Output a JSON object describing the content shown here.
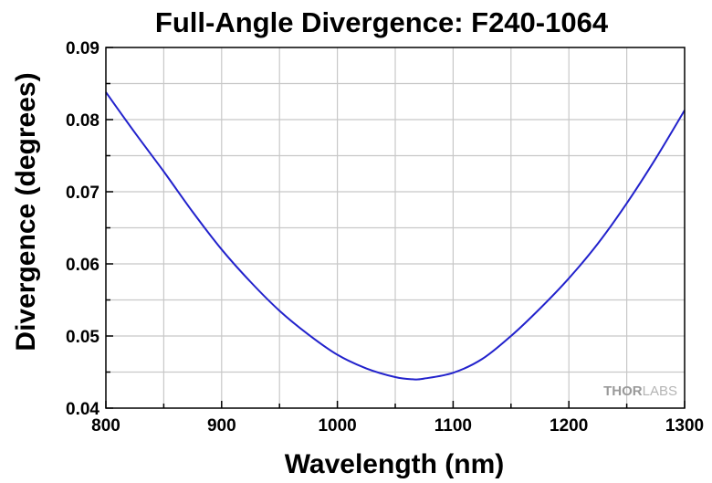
{
  "chart_data": {
    "type": "line",
    "title": "Full-Angle Divergence: F240-1064",
    "xlabel": "Wavelength (nm)",
    "ylabel": "Divergence (degrees)",
    "xlim": [
      800,
      1300
    ],
    "ylim": [
      0.04,
      0.09
    ],
    "x_ticks": [
      800,
      900,
      1000,
      1100,
      1200,
      1300
    ],
    "x_tick_labels": [
      "800",
      "900",
      "1000",
      "1100",
      "1200",
      "1300"
    ],
    "y_ticks": [
      0.04,
      0.05,
      0.06,
      0.07,
      0.08,
      0.09
    ],
    "y_tick_labels": [
      "0.04",
      "0.05",
      "0.06",
      "0.07",
      "0.08",
      "0.09"
    ],
    "grid": true,
    "series": [
      {
        "color": "#2222cc",
        "x": [
          800,
          825,
          850,
          875,
          900,
          925,
          950,
          975,
          1000,
          1025,
          1050,
          1065,
          1075,
          1100,
          1125,
          1150,
          1175,
          1200,
          1225,
          1250,
          1275,
          1300
        ],
        "y": [
          0.0838,
          0.0782,
          0.0728,
          0.0672,
          0.062,
          0.0575,
          0.0535,
          0.0502,
          0.0474,
          0.0455,
          0.0443,
          0.044,
          0.0441,
          0.0449,
          0.0468,
          0.05,
          0.0538,
          0.058,
          0.0628,
          0.0684,
          0.0746,
          0.0813
        ]
      }
    ]
  },
  "watermark": {
    "thor": "THOR",
    "labs": "LABS"
  }
}
